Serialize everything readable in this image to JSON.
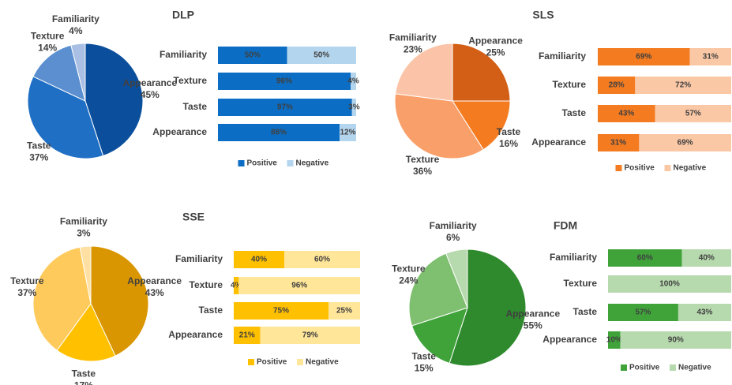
{
  "chart_data": [
    {
      "type": "pie",
      "categories": [
        "Appearance",
        "Taste",
        "Texture",
        "Familiarity"
      ],
      "values": [
        45,
        37,
        14,
        4
      ],
      "value_labels": [
        "45%",
        "37%",
        "14%",
        "4%"
      ],
      "colors": [
        "#0b4f9c",
        "#1f6fc5",
        "#5b8fd0",
        "#a9bfe3"
      ]
    },
    {
      "type": "bar",
      "orientation": "horizontal",
      "stacked": true,
      "title": "DLP",
      "categories": [
        "Familiarity",
        "Texture",
        "Taste",
        "Appearance"
      ],
      "xlim": [
        0,
        100
      ],
      "legend": "bottom",
      "series": [
        {
          "name": "Positive",
          "color": "#0b6dc4",
          "values": [
            50,
            96,
            97,
            88
          ],
          "value_labels": [
            "50%",
            "96%",
            "97%",
            "88%"
          ]
        },
        {
          "name": "Negative",
          "color": "#b4d5ee",
          "values": [
            50,
            4,
            3,
            12
          ],
          "value_labels": [
            "50%",
            "4%",
            "3%",
            "12%"
          ]
        }
      ]
    },
    {
      "type": "pie",
      "categories": [
        "Appearance",
        "Taste",
        "Texture",
        "Familiarity"
      ],
      "values": [
        25,
        16,
        36,
        23
      ],
      "value_labels": [
        "25%",
        "16%",
        "36%",
        "23%"
      ],
      "colors": [
        "#d35f17",
        "#f47b20",
        "#f9a06a",
        "#fbc4a8"
      ]
    },
    {
      "type": "bar",
      "orientation": "horizontal",
      "stacked": true,
      "title": "SLS",
      "categories": [
        "Familiarity",
        "Texture",
        "Taste",
        "Appearance"
      ],
      "xlim": [
        0,
        100
      ],
      "legend": "bottom",
      "series": [
        {
          "name": "Positive",
          "color": "#f47b20",
          "values": [
            69,
            28,
            43,
            31
          ],
          "value_labels": [
            "69%",
            "28%",
            "43%",
            "31%"
          ]
        },
        {
          "name": "Negative",
          "color": "#fbc8a6",
          "values": [
            31,
            72,
            57,
            69
          ],
          "value_labels": [
            "31%",
            "72%",
            "57%",
            "69%"
          ]
        }
      ]
    },
    {
      "type": "pie",
      "categories": [
        "Appearance",
        "Taste",
        "Texture",
        "Familiarity"
      ],
      "values": [
        43,
        17,
        37,
        3
      ],
      "value_labels": [
        "43%",
        "17%",
        "37%",
        "3%"
      ],
      "colors": [
        "#d99600",
        "#ffc000",
        "#ffca5c",
        "#ffe0a3"
      ]
    },
    {
      "type": "bar",
      "orientation": "horizontal",
      "stacked": true,
      "title": "SSE",
      "categories": [
        "Familiarity",
        "Texture",
        "Taste",
        "Appearance"
      ],
      "xlim": [
        0,
        100
      ],
      "legend": "bottom",
      "series": [
        {
          "name": "Positive",
          "color": "#ffc000",
          "values": [
            40,
            4,
            75,
            21
          ],
          "value_labels": [
            "40%",
            "4%",
            "75%",
            "21%"
          ]
        },
        {
          "name": "Negative",
          "color": "#ffe699",
          "values": [
            60,
            96,
            25,
            79
          ],
          "value_labels": [
            "60%",
            "96%",
            "25%",
            "79%"
          ]
        }
      ]
    },
    {
      "type": "pie",
      "categories": [
        "Appearance",
        "Taste",
        "Texture",
        "Familiarity"
      ],
      "values": [
        55,
        15,
        24,
        6
      ],
      "value_labels": [
        "55%",
        "15%",
        "24%",
        "6%"
      ],
      "colors": [
        "#2f8a2e",
        "#3fa33a",
        "#7fbf70",
        "#b6d9ad"
      ]
    },
    {
      "type": "bar",
      "orientation": "horizontal",
      "stacked": true,
      "title": "FDM",
      "categories": [
        "Familiarity",
        "Texture",
        "Taste",
        "Appearance"
      ],
      "xlim": [
        0,
        100
      ],
      "legend": "bottom",
      "series": [
        {
          "name": "Positive",
          "color": "#3fa33a",
          "values": [
            60,
            0,
            57,
            10
          ],
          "value_labels": [
            "60%",
            null,
            "57%",
            "10%"
          ]
        },
        {
          "name": "Negative",
          "color": "#b6d9ad",
          "values": [
            40,
            100,
            43,
            90
          ],
          "value_labels": [
            "40%",
            "100%",
            "43%",
            "90%"
          ]
        }
      ]
    }
  ]
}
